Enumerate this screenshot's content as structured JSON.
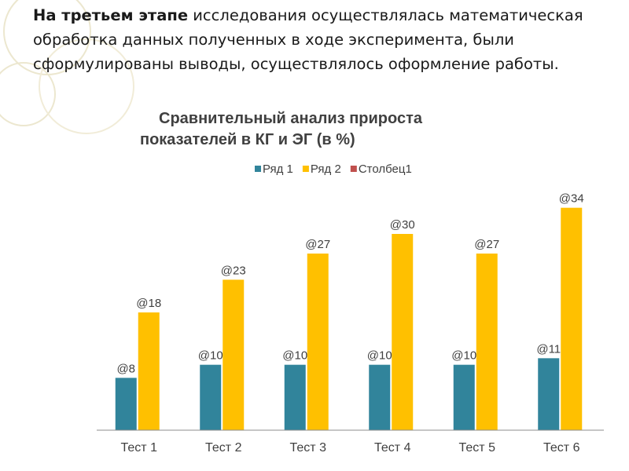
{
  "intro": {
    "lead": "На третьем этапе",
    "rest": " исследования осуществлялась математическая обработка данных полученных в ходе эксперимента,  были сформулированы выводы, осуществлялось оформление работы."
  },
  "chart_data": {
    "type": "bar",
    "title_line1": "Сравнительный анализ прироста",
    "title_line2": "показателей в КГ и ЭГ (в %)",
    "categories": [
      "Тест 1",
      "Тест 2",
      "Тест 3",
      "Тест 4",
      "Тест 5",
      "Тест 6"
    ],
    "series": [
      {
        "name": "Ряд 1",
        "color": "#31849b",
        "values": [
          8,
          10,
          10,
          10,
          10,
          11
        ],
        "labels": [
          "@8",
          "@10",
          "@10",
          "@10",
          "@10",
          "@11"
        ]
      },
      {
        "name": "Ряд 2",
        "color": "#ffc000",
        "values": [
          18,
          23,
          27,
          30,
          27,
          34
        ],
        "labels": [
          "@18",
          "@23",
          "@27",
          "@30",
          "@27",
          "@34"
        ]
      },
      {
        "name": "Столбец1",
        "color": "#c0504d",
        "values": [
          0,
          0,
          0,
          0,
          0,
          0
        ],
        "labels": []
      }
    ],
    "legend_position": "top",
    "grid": false,
    "ylim": [
      0,
      36
    ]
  }
}
